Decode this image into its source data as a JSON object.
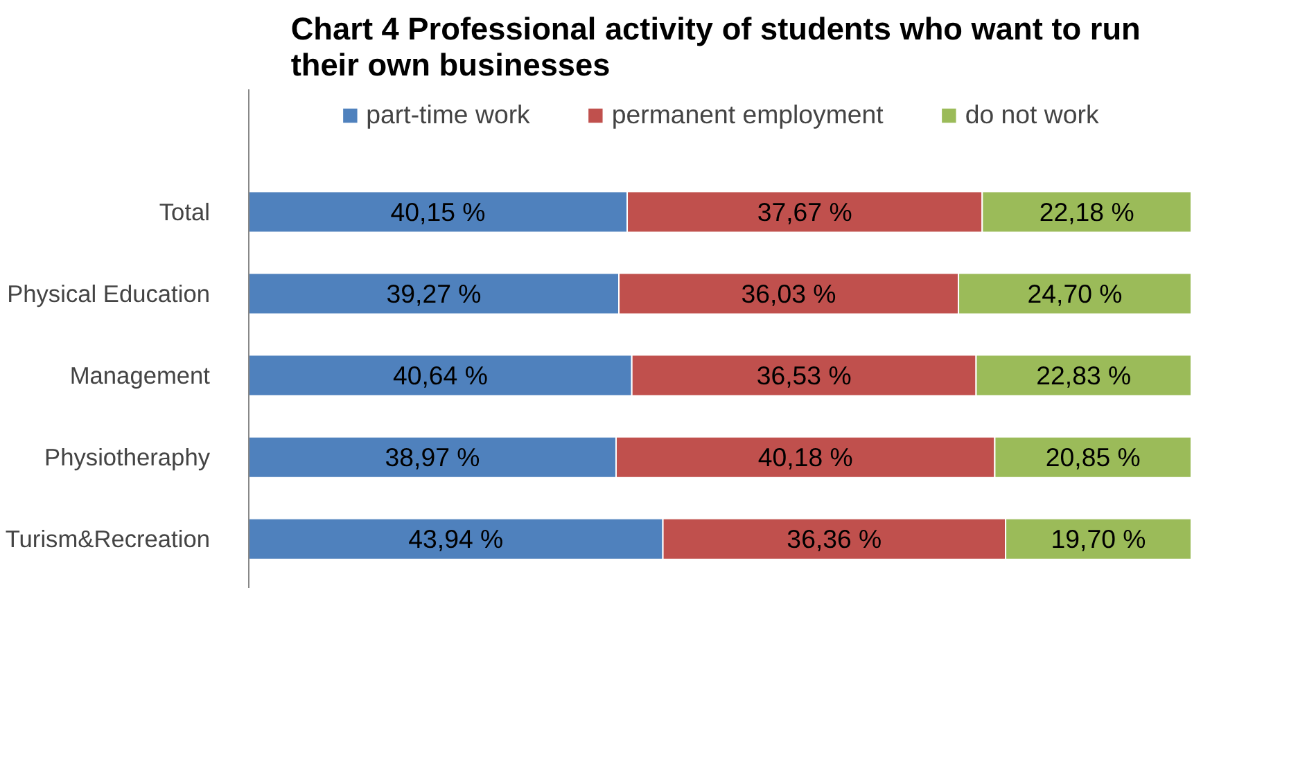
{
  "chart_data": {
    "type": "bar",
    "orientation": "horizontal",
    "stacked": true,
    "title": "Chart 4 Professional activity of students  who want to run their  own businesses",
    "categories": [
      "Total",
      "Physical Education",
      "Management",
      "Physiotheraphy",
      "Turism&Recreation"
    ],
    "series": [
      {
        "name": "part-time work",
        "color": "#4f81bd",
        "values": [
          40.15,
          39.27,
          40.64,
          38.97,
          43.94
        ],
        "value_labels": [
          "40,15 %",
          "39,27 %",
          "40,64 %",
          "38,97 %",
          "43,94 %"
        ]
      },
      {
        "name": "permanent employment",
        "color": "#c0504d",
        "values": [
          37.67,
          36.03,
          36.53,
          40.18,
          36.36
        ],
        "value_labels": [
          "37,67 %",
          "36,03 %",
          "36,53 %",
          "40,18 %",
          "36,36 %"
        ]
      },
      {
        "name": "do not work",
        "color": "#9bbb59",
        "values": [
          22.18,
          24.7,
          22.83,
          20.85,
          19.7
        ],
        "value_labels": [
          "22,18 %",
          "24,70 %",
          "22,83 %",
          "20,85 %",
          "19,70 %"
        ]
      }
    ],
    "legend": "top",
    "grid": false,
    "tick_labels": "y"
  }
}
